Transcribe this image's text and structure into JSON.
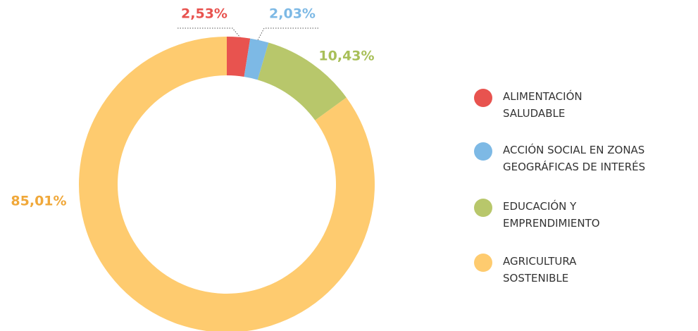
{
  "chart_data": {
    "type": "donut",
    "categories": [
      "ALIMENTACIÓN\nSALUDABLE",
      "ACCIÓN SOCIAL EN ZONAS\nGEOGRÁFICAS DE INTERÉS",
      "EDUCACIÓN Y\nEMPRENDIMIENTO",
      "AGRICULTURA\nSOSTENIBLE"
    ],
    "values": [
      2.53,
      2.03,
      10.43,
      85.01
    ],
    "value_labels": [
      "2,53%",
      "2,03%",
      "10,43%",
      "85,01%"
    ],
    "colors": [
      "#e8534f",
      "#7db9e5",
      "#b8c76b",
      "#fecb6f"
    ],
    "label_colors": [
      "#e8534f",
      "#7db9e5",
      "#a8bf58",
      "#f0a83a"
    ],
    "legend": "right"
  }
}
